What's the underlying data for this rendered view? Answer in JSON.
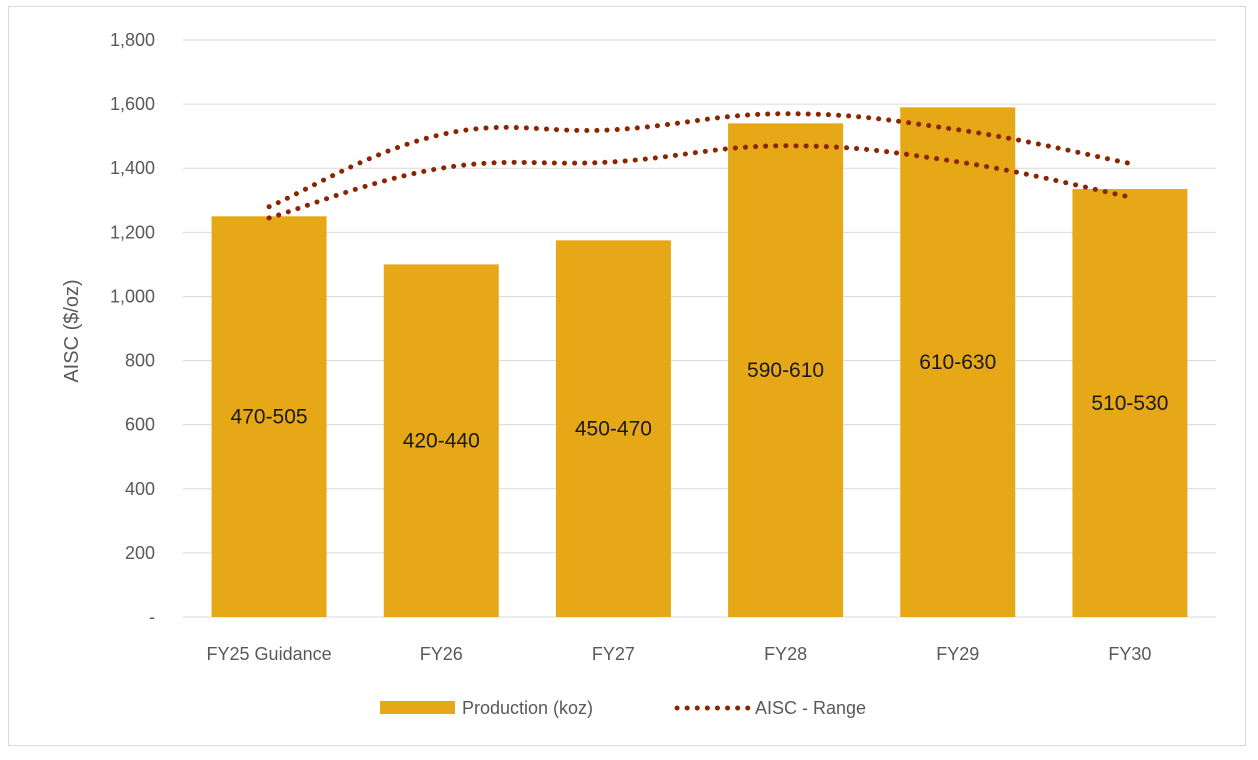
{
  "chart_data": {
    "type": "bar",
    "categories": [
      "FY25 Guidance",
      "FY26",
      "FY27",
      "FY28",
      "FY29",
      "FY30"
    ],
    "series": [
      {
        "name": "Production (koz)",
        "kind": "bar",
        "values": [
          1250,
          1100,
          1175,
          1540,
          1590,
          1335
        ],
        "data_labels": [
          "470-505",
          "420-440",
          "450-470",
          "590-610",
          "610-630",
          "510-530"
        ],
        "color": "#E6A817"
      },
      {
        "name": "AISC - Range",
        "kind": "dotted-line",
        "upper": [
          1280,
          1505,
          1520,
          1570,
          1520,
          1415
        ],
        "lower": [
          1245,
          1400,
          1420,
          1470,
          1420,
          1310
        ],
        "color": "#8B2500"
      }
    ],
    "ylabel": "AISC ($/oz)",
    "xlabel": "",
    "ylim": [
      0,
      1800
    ],
    "yticks": [
      0,
      200,
      400,
      600,
      800,
      1000,
      1200,
      1400,
      1600,
      1800
    ],
    "ytick_labels": [
      "-",
      "200",
      "400",
      "600",
      "800",
      "1,000",
      "1,200",
      "1,400",
      "1,600",
      "1,800"
    ],
    "grid": true,
    "legend_position": "bottom"
  }
}
